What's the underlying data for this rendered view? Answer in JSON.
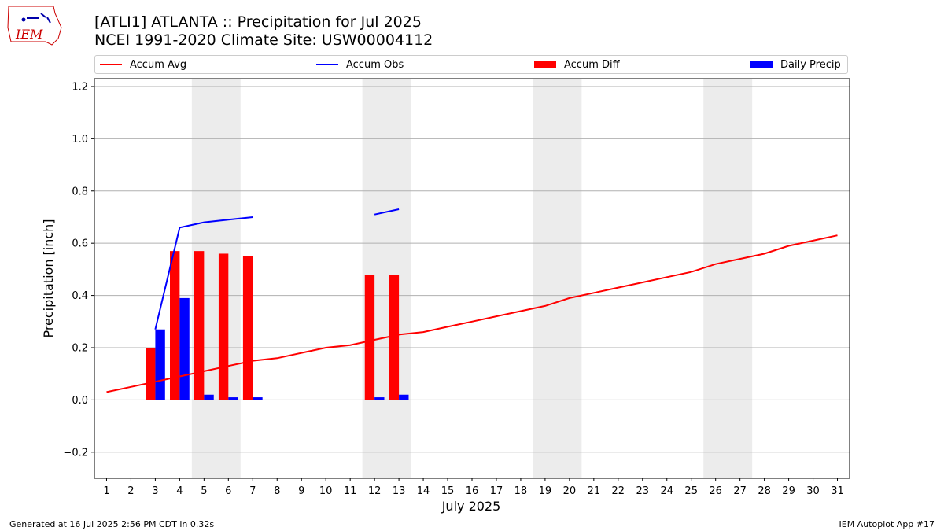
{
  "header": {
    "title": "[ATLI1] ATLANTA :: Precipitation for Jul 2025",
    "subtitle": "NCEI 1991-2020 Climate Site: USW00004112",
    "logo_text": "IEM"
  },
  "footer": {
    "generated": "Generated at 16 Jul 2025 2:56 PM CDT in 0.32s",
    "app": "IEM Autoplot App #17"
  },
  "colors": {
    "accum_avg": "#ff0000",
    "accum_obs": "#0000ff",
    "accum_diff": "#ff0000",
    "daily_precip": "#0000ff",
    "weekend_band": "#ececec",
    "grid": "#b0b0b0"
  },
  "chart_data": {
    "type": "bar",
    "xlabel": "July 2025",
    "ylabel": "Precipitation [inch]",
    "xlim": [
      0.5,
      31.5
    ],
    "ylim": [
      -0.3,
      1.23
    ],
    "yticks": [
      -0.2,
      0.0,
      0.2,
      0.4,
      0.6,
      0.8,
      1.0,
      1.2
    ],
    "ytick_labels": [
      "−0.2",
      "0.0",
      "0.2",
      "0.4",
      "0.6",
      "0.8",
      "1.0",
      "1.2"
    ],
    "xticks": [
      1,
      2,
      3,
      4,
      5,
      6,
      7,
      8,
      9,
      10,
      11,
      12,
      13,
      14,
      15,
      16,
      17,
      18,
      19,
      20,
      21,
      22,
      23,
      24,
      25,
      26,
      27,
      28,
      29,
      30,
      31
    ],
    "grid": "horizontal",
    "legend_placement": "top",
    "legend": [
      "Accum Avg",
      "Accum Obs",
      "Accum Diff",
      "Daily Precip"
    ],
    "weekend_bands": [
      [
        4.5,
        6.5
      ],
      [
        11.5,
        13.5
      ],
      [
        18.5,
        20.5
      ],
      [
        25.5,
        27.5
      ]
    ],
    "accum_avg": {
      "x": [
        1,
        2,
        3,
        4,
        5,
        6,
        7,
        8,
        9,
        10,
        11,
        12,
        13,
        14,
        15,
        16,
        17,
        18,
        19,
        20,
        21,
        22,
        23,
        24,
        25,
        26,
        27,
        28,
        29,
        30,
        31
      ],
      "y": [
        0.03,
        0.05,
        0.07,
        0.09,
        0.11,
        0.13,
        0.15,
        0.16,
        0.18,
        0.2,
        0.21,
        0.23,
        0.25,
        0.26,
        0.28,
        0.3,
        0.32,
        0.34,
        0.36,
        0.39,
        0.41,
        0.43,
        0.45,
        0.47,
        0.49,
        0.52,
        0.54,
        0.56,
        0.59,
        0.61,
        0.63
      ]
    },
    "accum_obs": [
      {
        "x": [
          3,
          4,
          5,
          6,
          7
        ],
        "y": [
          0.27,
          0.66,
          0.68,
          0.69,
          0.7
        ]
      },
      {
        "x": [
          12,
          13
        ],
        "y": [
          0.71,
          0.73
        ]
      }
    ],
    "accum_diff": {
      "x": [
        3,
        4,
        5,
        6,
        7,
        12,
        13
      ],
      "y": [
        0.2,
        0.57,
        0.57,
        0.56,
        0.55,
        0.48,
        0.48
      ]
    },
    "daily_precip": {
      "x": [
        3,
        4,
        5,
        6,
        7,
        12,
        13
      ],
      "y": [
        0.27,
        0.39,
        0.02,
        0.01,
        0.01,
        0.01,
        0.02
      ]
    }
  }
}
